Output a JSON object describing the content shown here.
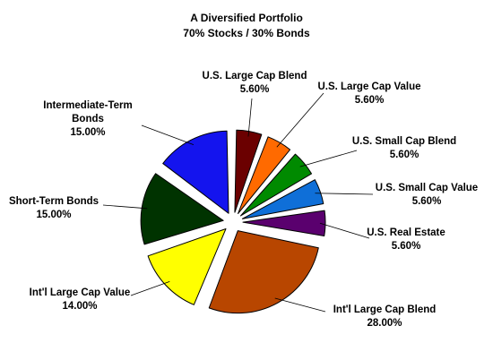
{
  "chart_data": {
    "type": "pie",
    "title": "A Diversified Portfolio",
    "subtitle": "70% Stocks / 30% Bonds",
    "slices": [
      {
        "label": "U.S. Large Cap Blend",
        "display": [
          "U.S. Large Cap Blend"
        ],
        "value_label": "5.60%",
        "value": 5.6,
        "color": "#6b0000"
      },
      {
        "label": "U.S. Large Cap Value",
        "display": [
          "U.S. Large Cap Value"
        ],
        "value_label": "5.60%",
        "value": 5.6,
        "color": "#ff6a00"
      },
      {
        "label": "U.S. Small Cap Blend",
        "display": [
          "U.S. Small Cap Blend"
        ],
        "value_label": "5.60%",
        "value": 5.6,
        "color": "#008a00"
      },
      {
        "label": "U.S. Small Cap Value",
        "display": [
          "U.S. Small Cap Value"
        ],
        "value_label": "5.60%",
        "value": 5.6,
        "color": "#0f6fd8"
      },
      {
        "label": "U.S. Real Estate",
        "display": [
          "U.S. Real Estate"
        ],
        "value_label": "5.60%",
        "value": 5.6,
        "color": "#5a006e"
      },
      {
        "label": "Int'l Large Cap Blend",
        "display": [
          "Int'l Large Cap Blend"
        ],
        "value_label": "28.00%",
        "value": 28.0,
        "color": "#b84600"
      },
      {
        "label": "Int'l Large Cap Value",
        "display": [
          "Int'l Large Cap Value"
        ],
        "value_label": "14.00%",
        "value": 14.0,
        "color": "#ffff00"
      },
      {
        "label": "Short-Term Bonds",
        "display": [
          "Short-Term Bonds"
        ],
        "value_label": "15.00%",
        "value": 15.0,
        "color": "#003300"
      },
      {
        "label": "Intermediate-Term Bonds",
        "display": [
          "Intermediate-Term",
          "Bonds"
        ],
        "value_label": "15.00%",
        "value": 15.0,
        "color": "#1414ee"
      }
    ]
  }
}
